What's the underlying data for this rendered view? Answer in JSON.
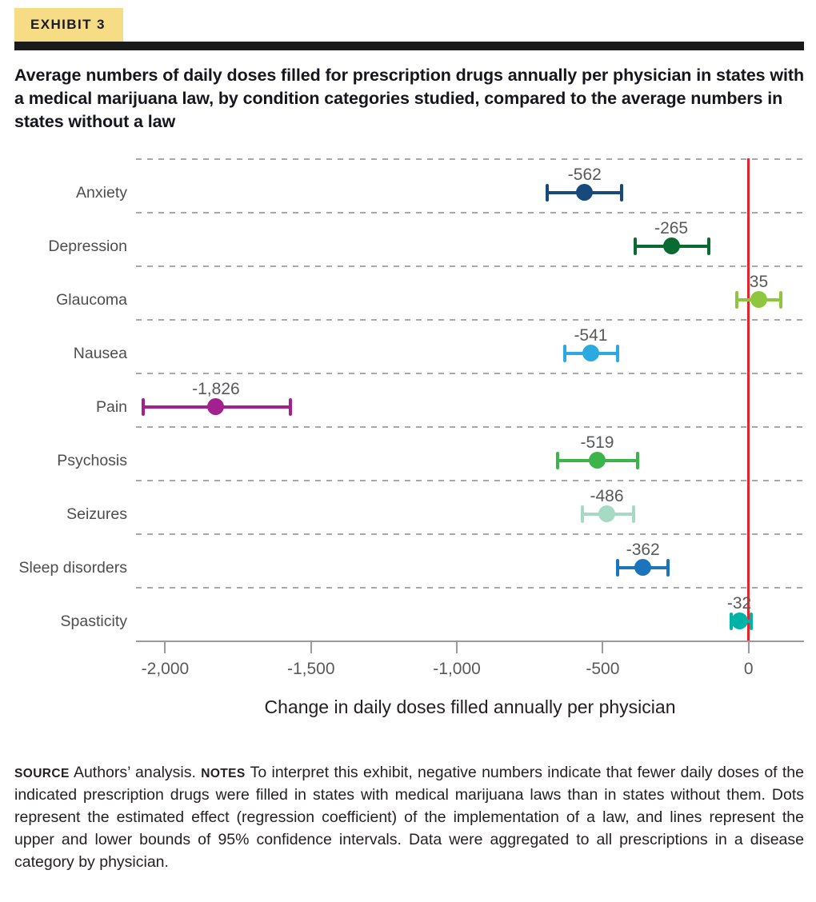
{
  "header": {
    "exhibit_label": "EXHIBIT 3",
    "title": "Average numbers of daily doses filled for prescription drugs annually per physician in states with a medical marijuana law, by condition categories studied, compared to the average numbers in states without a law"
  },
  "colors": {
    "exhibit_tag_bg": "#F6DC84",
    "header_bar": "#1A1A1A",
    "grid": "#A8A8A8",
    "axis": "#9A9A9A",
    "zero_line": "#E5242B",
    "value_label_text": "#58595B",
    "category_label_text": "#4D4D4F"
  },
  "chart_data": {
    "type": "scatter",
    "subtype": "dot-with-95ci-error-bars",
    "title": "Change in daily doses filled annually per physician by condition category",
    "xlabel": "Change in daily doses filled annually per physician",
    "xlim": [
      -2100,
      190
    ],
    "grid": "dashed-horizontal",
    "zero_line": 0,
    "ticks": [
      {
        "value": -2000,
        "label": "-2,000"
      },
      {
        "value": -1500,
        "label": "-1,500"
      },
      {
        "value": -1000,
        "label": "-1,000"
      },
      {
        "value": -500,
        "label": "-500"
      },
      {
        "value": 0,
        "label": "0"
      }
    ],
    "points": [
      {
        "category": "Anxiety",
        "value": -562,
        "label": "-562",
        "ci_low": -690,
        "ci_high": -435,
        "color": "#17497D"
      },
      {
        "category": "Depression",
        "value": -265,
        "label": "-265",
        "ci_low": -390,
        "ci_high": -135,
        "color": "#0A6B32"
      },
      {
        "category": "Glaucoma",
        "value": 35,
        "label": "35",
        "ci_low": -40,
        "ci_high": 110,
        "color": "#8EC63F"
      },
      {
        "category": "Nausea",
        "value": -541,
        "label": "-541",
        "ci_low": -630,
        "ci_high": -450,
        "color": "#2BAAE2"
      },
      {
        "category": "Pain",
        "value": -1826,
        "label": "-1,826",
        "ci_low": -2075,
        "ci_high": -1570,
        "color": "#A3218F"
      },
      {
        "category": "Psychosis",
        "value": -519,
        "label": "-519",
        "ci_low": -655,
        "ci_high": -380,
        "color": "#3BB54A"
      },
      {
        "category": "Seizures",
        "value": -486,
        "label": "-486",
        "ci_low": -570,
        "ci_high": -395,
        "color": "#A6DAC4"
      },
      {
        "category": "Sleep disorders",
        "value": -362,
        "label": "-362",
        "ci_low": -450,
        "ci_high": -275,
        "color": "#1C75BC"
      },
      {
        "category": "Spasticity",
        "value": -32,
        "label": "-32",
        "ci_low": -60,
        "ci_high": 10,
        "color": "#00B3A9"
      }
    ]
  },
  "notes": {
    "source_label": "SOURCE",
    "source_text": " Authors’ analysis. ",
    "notes_label": "NOTES",
    "notes_text": " To interpret this exhibit, negative numbers indicate that fewer daily doses of the indicated prescription drugs were filled in states with medical marijuana laws than in states without them. Dots represent the estimated effect (regression coefficient) of the implementation of a law, and lines represent the upper and lower bounds of 95% confidence intervals. Data were aggregated to all prescriptions in a disease category by physician."
  }
}
